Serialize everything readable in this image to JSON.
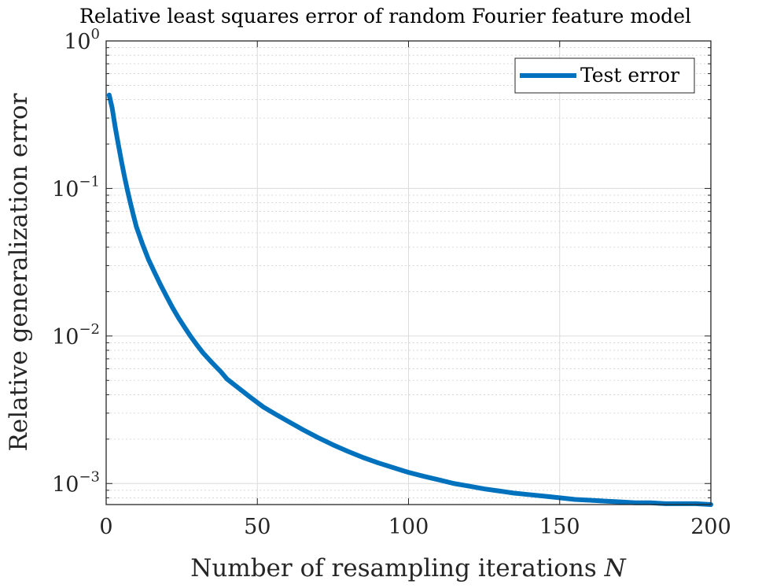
{
  "chart_data": {
    "type": "line",
    "title": "Relative least squares error of random Fourier feature model",
    "xlabel": "Number of resampling iterations",
    "xlabel_var": "N",
    "ylabel": "Relative generalization error",
    "xlim": [
      0,
      200
    ],
    "ylim": [
      0.00072,
      1
    ],
    "yscale": "log",
    "grid": true,
    "legend_position": "top-right",
    "x_ticks": [
      {
        "value": 0,
        "label": "0"
      },
      {
        "value": 50,
        "label": "50"
      },
      {
        "value": 100,
        "label": "100"
      },
      {
        "value": 150,
        "label": "150"
      },
      {
        "value": 200,
        "label": "200"
      }
    ],
    "y_ticks": [
      {
        "value": 1,
        "base": "10",
        "exp": "0"
      },
      {
        "value": 0.1,
        "base": "10",
        "exp": "−1"
      },
      {
        "value": 0.01,
        "base": "10",
        "exp": "−2"
      },
      {
        "value": 0.001,
        "base": "10",
        "exp": "−3"
      }
    ],
    "series": [
      {
        "name": "Test error",
        "color": "#0072BD",
        "x": [
          1,
          2,
          3,
          4,
          5,
          6,
          7,
          8,
          9,
          10,
          12,
          14,
          16,
          18,
          20,
          22,
          24,
          26,
          28,
          30,
          32,
          35,
          38,
          40,
          44,
          48,
          52,
          56,
          60,
          65,
          70,
          75,
          80,
          85,
          90,
          95,
          100,
          105,
          110,
          115,
          120,
          125,
          130,
          135,
          140,
          145,
          150,
          155,
          160,
          165,
          170,
          175,
          180,
          185,
          190,
          195,
          200
        ],
        "y": [
          0.43,
          0.35,
          0.26,
          0.2,
          0.155,
          0.122,
          0.098,
          0.08,
          0.066,
          0.055,
          0.042,
          0.033,
          0.027,
          0.0222,
          0.0185,
          0.0155,
          0.0132,
          0.0114,
          0.0099,
          0.0087,
          0.0077,
          0.0066,
          0.0057,
          0.0051,
          0.0044,
          0.0038,
          0.0033,
          0.00295,
          0.00265,
          0.00232,
          0.00205,
          0.00183,
          0.00165,
          0.0015,
          0.00138,
          0.00128,
          0.00119,
          0.00112,
          0.00106,
          0.001,
          0.00096,
          0.00092,
          0.00089,
          0.00086,
          0.00084,
          0.00082,
          0.0008,
          0.00078,
          0.00077,
          0.00076,
          0.00075,
          0.00074,
          0.00074,
          0.00073,
          0.00073,
          0.00073,
          0.00072
        ]
      }
    ]
  }
}
